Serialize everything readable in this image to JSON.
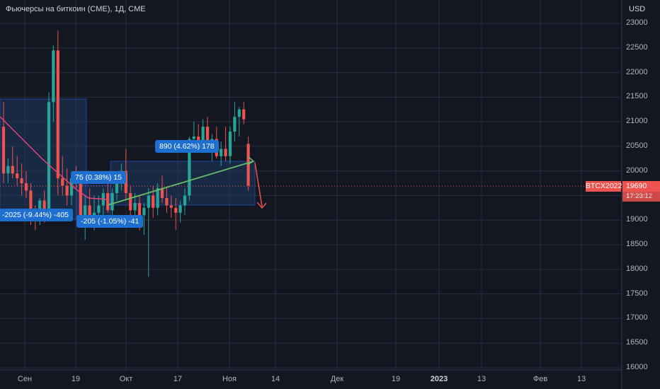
{
  "header": {
    "title": "Фьючерсы на биткоин (CME), 1Д, CME",
    "currency": "USD"
  },
  "chart_data": {
    "type": "candlestick",
    "y_ticks": [
      23000,
      22500,
      22000,
      21500,
      21000,
      20500,
      20000,
      19500,
      19000,
      18500,
      18000,
      17500,
      17000,
      16500,
      16000
    ],
    "x_ticks": [
      "Сен",
      "19",
      "Окт",
      "17",
      "Ноя",
      "14",
      "Дек",
      "19",
      "2023",
      "13",
      "Фев",
      "13"
    ],
    "x_ticks_bold": [
      "2023"
    ],
    "grid": true,
    "candles": [
      [
        20900,
        21400,
        19750,
        19950
      ],
      [
        19950,
        20250,
        19750,
        20100
      ],
      [
        20100,
        20500,
        19850,
        19950
      ],
      [
        19950,
        20300,
        19700,
        19850
      ],
      [
        19850,
        20150,
        19500,
        19750
      ],
      [
        19750,
        20000,
        19450,
        19600
      ],
      [
        19600,
        19750,
        18900,
        19050
      ],
      [
        19050,
        19300,
        18800,
        19000
      ],
      [
        19000,
        19450,
        18900,
        19400
      ],
      [
        19400,
        19600,
        18950,
        19200
      ],
      [
        19200,
        21600,
        19100,
        21400
      ],
      [
        21400,
        22550,
        21000,
        22450
      ],
      [
        22450,
        22850,
        19500,
        19850
      ],
      [
        19850,
        20300,
        19500,
        19700
      ],
      [
        19700,
        20050,
        19300,
        19500
      ],
      [
        19500,
        19900,
        19300,
        19850
      ],
      [
        19850,
        20100,
        19650,
        19800
      ],
      [
        19800,
        19900,
        18850,
        19000
      ],
      [
        19000,
        19500,
        18600,
        19300
      ],
      [
        19300,
        19650,
        18850,
        19100
      ],
      [
        19100,
        19500,
        18800,
        19150
      ],
      [
        19150,
        19500,
        18900,
        19300
      ],
      [
        19300,
        19650,
        19100,
        19550
      ],
      [
        19550,
        19750,
        19150,
        19200
      ],
      [
        19200,
        19650,
        19050,
        19550
      ],
      [
        19550,
        19900,
        19400,
        19750
      ],
      [
        19750,
        20150,
        19600,
        20000
      ],
      [
        20000,
        20450,
        19400,
        19550
      ],
      [
        19550,
        19700,
        19050,
        19200
      ],
      [
        19200,
        19550,
        18950,
        19350
      ],
      [
        19350,
        19500,
        18800,
        19100
      ],
      [
        19100,
        19350,
        18700,
        19250
      ],
      [
        19250,
        19650,
        17850,
        19500
      ],
      [
        19500,
        19700,
        19050,
        19250
      ],
      [
        19250,
        19750,
        19100,
        19650
      ],
      [
        19650,
        19900,
        19350,
        19450
      ],
      [
        19450,
        19650,
        19150,
        19300
      ],
      [
        19300,
        19500,
        19050,
        19250
      ],
      [
        19250,
        19450,
        18800,
        19150
      ],
      [
        19150,
        19400,
        18950,
        19300
      ],
      [
        19300,
        19650,
        19100,
        19500
      ],
      [
        19500,
        20700,
        19400,
        20650
      ],
      [
        20650,
        21000,
        20450,
        20700
      ],
      [
        20700,
        20950,
        20400,
        20550
      ],
      [
        20550,
        21050,
        20450,
        20900
      ],
      [
        20900,
        21100,
        20500,
        20450
      ],
      [
        20450,
        20750,
        20200,
        20650
      ],
      [
        20650,
        20900,
        20250,
        20300
      ],
      [
        20300,
        20600,
        20100,
        20450
      ],
      [
        20450,
        20900,
        20200,
        20300
      ],
      [
        20300,
        20900,
        20150,
        20800
      ],
      [
        20800,
        21400,
        20600,
        21100
      ],
      [
        21100,
        21300,
        20700,
        21250
      ],
      [
        21250,
        21400,
        20950,
        21050
      ],
      [
        20550,
        20700,
        19600,
        19700
      ]
    ],
    "last_price": {
      "symbol": "BTCX2022",
      "price": "19690",
      "countdown": "17:23:12",
      "value": 19690
    },
    "annotations": [
      {
        "label": "-2025 (-9.44%) -405",
        "color": "#2962ff"
      },
      {
        "label": "75 (0.38%) 15",
        "color": "#2962ff"
      },
      {
        "label": "-205 (-1.05%) -41",
        "color": "#2962ff"
      },
      {
        "label": "890 (4.62%) 178",
        "color": "#2962ff"
      }
    ],
    "colors": {
      "up": "#26a69a",
      "down": "#ef5350",
      "bg": "#131722",
      "grid": "#2a2e39",
      "box": "#1e3a5f",
      "pink_line": "#ec407a",
      "green_line": "#66bb6a"
    }
  }
}
